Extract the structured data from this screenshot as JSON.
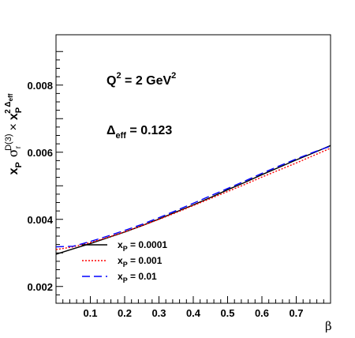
{
  "chart_data": {
    "type": "line",
    "xlabel": "β",
    "ylabel": {
      "x_base": "x",
      "x_sub": "P",
      "sigma": "σ",
      "sigma_sub": "r",
      "sigma_sup": "D(3)",
      "times": "×",
      "x2_base": "x",
      "x2_sub": "P",
      "x2_sup": "2 Δ",
      "x2_sup_sub": "eff"
    },
    "xlim": [
      0.0,
      0.8
    ],
    "ylim": [
      0.0015,
      0.0095
    ],
    "x_ticks": [
      {
        "value": 0.1,
        "label": "0.1"
      },
      {
        "value": 0.2,
        "label": "0.2"
      },
      {
        "value": 0.3,
        "label": "0.3"
      },
      {
        "value": 0.4,
        "label": "0.4"
      },
      {
        "value": 0.5,
        "label": "0.5"
      },
      {
        "value": 0.6,
        "label": "0.6"
      },
      {
        "value": 0.7,
        "label": "0.7"
      }
    ],
    "y_ticks": [
      {
        "value": 0.002,
        "label": "0.002"
      },
      {
        "value": 0.004,
        "label": "0.004"
      },
      {
        "value": 0.006,
        "label": "0.006"
      },
      {
        "value": 0.008,
        "label": "0.008"
      }
    ],
    "annotations": {
      "q2": {
        "base": "Q",
        "sup": "2",
        "mid": " = 2 GeV",
        "sup2": "2"
      },
      "delta": {
        "base": "Δ",
        "sub": "eff",
        "rest": " = 0.123"
      }
    },
    "legend_position": "bottom-left",
    "series": [
      {
        "name": "x",
        "name_sub": "P",
        "name_rest": " = 0.0001",
        "color": "#000000",
        "dash": "solid",
        "x": [
          0.0,
          0.05,
          0.1,
          0.15,
          0.2,
          0.25,
          0.3,
          0.35,
          0.4,
          0.45,
          0.5,
          0.55,
          0.6,
          0.65,
          0.7,
          0.75,
          0.8
        ],
        "y": [
          0.00296,
          0.00312,
          0.00328,
          0.00345,
          0.00362,
          0.00381,
          0.00401,
          0.00422,
          0.00443,
          0.00465,
          0.00488,
          0.0051,
          0.00533,
          0.00555,
          0.00577,
          0.00598,
          0.0062
        ]
      },
      {
        "name": "x",
        "name_sub": "P",
        "name_rest": " = 0.001",
        "color": "#ff0000",
        "dash": "dotted",
        "x": [
          0.0,
          0.05,
          0.1,
          0.15,
          0.2,
          0.25,
          0.3,
          0.35,
          0.4,
          0.45,
          0.5,
          0.55,
          0.6,
          0.65,
          0.7,
          0.75,
          0.8
        ],
        "y": [
          0.0031,
          0.00318,
          0.00331,
          0.00346,
          0.00363,
          0.00381,
          0.004,
          0.0042,
          0.00441,
          0.00462,
          0.00483,
          0.00504,
          0.00526,
          0.00547,
          0.00568,
          0.0059,
          0.00612
        ]
      },
      {
        "name": "x",
        "name_sub": "P",
        "name_rest": " = 0.01",
        "color": "#0000ff",
        "dash": "dashed",
        "x": [
          0.0,
          0.05,
          0.1,
          0.15,
          0.2,
          0.25,
          0.3,
          0.35,
          0.4,
          0.45,
          0.5,
          0.55,
          0.6,
          0.65,
          0.7,
          0.75,
          0.8
        ],
        "y": [
          0.00318,
          0.0032,
          0.00334,
          0.0035,
          0.00367,
          0.00385,
          0.00405,
          0.00426,
          0.00448,
          0.0047,
          0.00492,
          0.00514,
          0.00537,
          0.00559,
          0.0058,
          0.006,
          0.00618
        ]
      }
    ]
  }
}
